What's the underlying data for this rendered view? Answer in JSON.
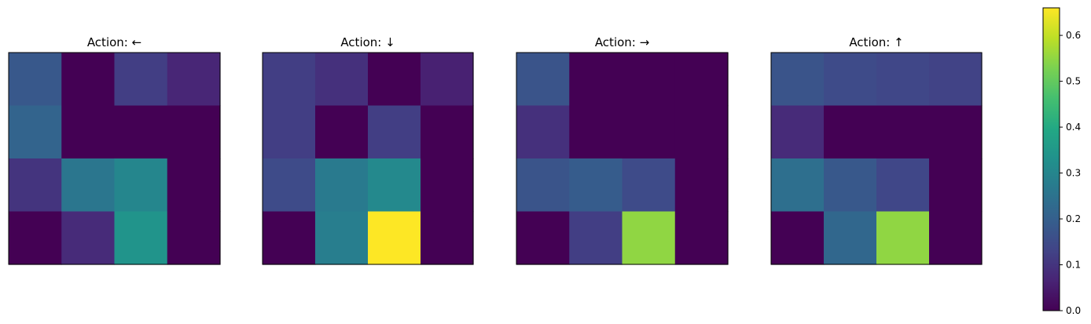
{
  "chart_data": {
    "type": "heatmap",
    "colormap": "viridis",
    "colorbar": {
      "vmin": 0.0,
      "vmax": 0.66,
      "ticks": [
        0.0,
        0.1,
        0.2,
        0.3,
        0.4,
        0.5,
        0.6
      ],
      "tick_labels": [
        "0.0",
        "0.1",
        "0.2",
        "0.3",
        "0.4",
        "0.5",
        "0.6"
      ]
    },
    "panels": [
      {
        "title": "Action: ←",
        "values": [
          [
            0.18,
            0.0,
            0.12,
            0.07
          ],
          [
            0.21,
            0.0,
            0.0,
            0.0
          ],
          [
            0.1,
            0.26,
            0.3,
            0.0
          ],
          [
            0.0,
            0.08,
            0.34,
            0.0
          ]
        ]
      },
      {
        "title": "Action: ↓",
        "values": [
          [
            0.12,
            0.09,
            0.0,
            0.06
          ],
          [
            0.12,
            0.0,
            0.12,
            0.0
          ],
          [
            0.15,
            0.27,
            0.31,
            0.0
          ],
          [
            0.0,
            0.28,
            0.66,
            0.0
          ]
        ]
      },
      {
        "title": "Action: →",
        "values": [
          [
            0.17,
            0.0,
            0.0,
            0.0
          ],
          [
            0.09,
            0.0,
            0.0,
            0.0
          ],
          [
            0.17,
            0.19,
            0.15,
            0.0
          ],
          [
            0.0,
            0.12,
            0.55,
            0.0
          ]
        ]
      },
      {
        "title": "Action: ↑",
        "values": [
          [
            0.17,
            0.15,
            0.14,
            0.13
          ],
          [
            0.08,
            0.0,
            0.0,
            0.0
          ],
          [
            0.24,
            0.18,
            0.14,
            0.0
          ],
          [
            0.0,
            0.22,
            0.55,
            0.0
          ]
        ]
      }
    ]
  }
}
